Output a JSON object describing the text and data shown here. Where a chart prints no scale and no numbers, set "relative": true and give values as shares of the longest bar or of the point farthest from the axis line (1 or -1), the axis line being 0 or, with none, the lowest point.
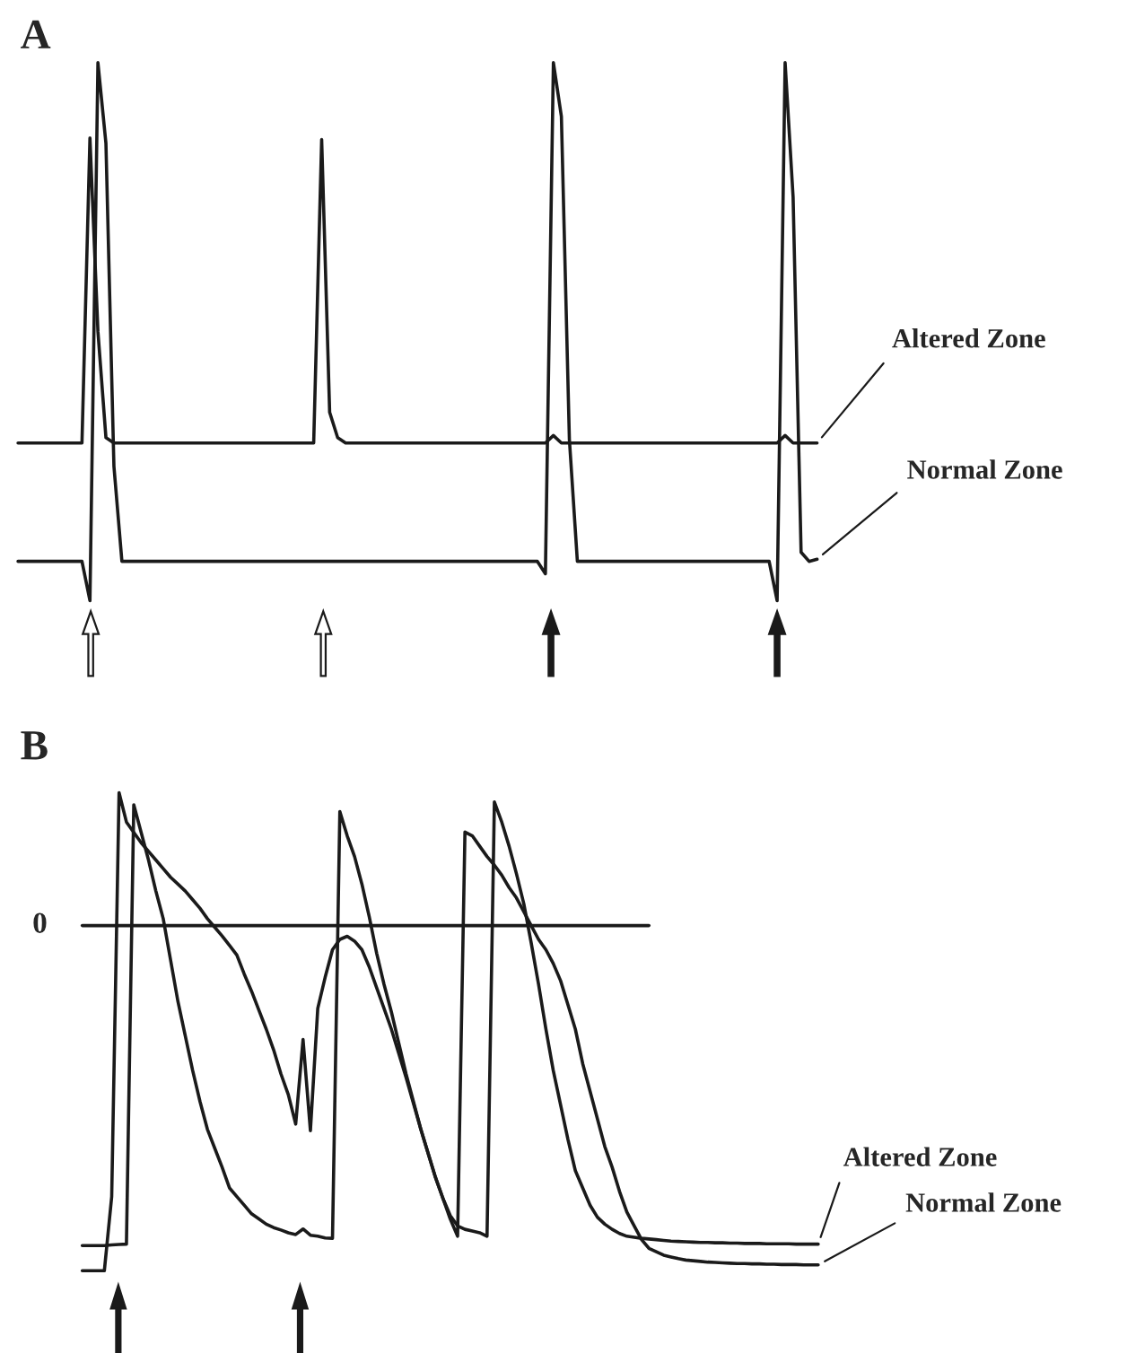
{
  "chart_data": [
    {
      "type": "line",
      "relative": true,
      "title": "A",
      "categories": [
        null,
        null,
        null,
        null,
        null,
        null,
        null,
        null,
        null,
        null,
        null,
        null,
        null,
        null,
        null,
        null,
        null,
        null,
        null,
        null,
        null,
        null,
        null,
        null,
        null,
        null,
        null,
        null,
        null,
        null,
        null,
        null,
        null,
        null,
        null,
        null,
        null,
        null,
        null,
        null,
        null,
        null,
        null,
        null,
        null,
        null,
        null,
        null,
        null,
        null,
        null,
        null,
        null,
        null,
        null,
        null,
        null,
        null,
        null,
        null,
        null,
        null,
        null,
        null,
        null,
        null,
        null,
        null,
        null,
        null,
        null,
        null,
        null,
        null,
        null,
        null,
        null,
        null,
        null,
        null,
        null,
        null,
        null,
        null,
        null,
        null,
        null,
        null,
        null,
        null,
        null,
        null,
        null,
        null,
        null,
        null,
        null,
        null,
        null,
        null,
        null
      ],
      "series": [
        {
          "name": "Altered Zone",
          "color": "#1a1a1a",
          "values": [
            0.293,
            0.293,
            0.293,
            0.293,
            0.293,
            0.293,
            0.293,
            0.293,
            0.293,
            0.86,
            0.5,
            0.303,
            0.293,
            0.293,
            0.293,
            0.293,
            0.293,
            0.293,
            0.293,
            0.293,
            0.293,
            0.293,
            0.293,
            0.293,
            0.293,
            0.293,
            0.293,
            0.293,
            0.293,
            0.293,
            0.293,
            0.293,
            0.293,
            0.293,
            0.293,
            0.293,
            0.293,
            0.293,
            0.857,
            0.35,
            0.303,
            0.293,
            0.293,
            0.293,
            0.293,
            0.293,
            0.293,
            0.293,
            0.293,
            0.293,
            0.293,
            0.293,
            0.293,
            0.293,
            0.293,
            0.293,
            0.293,
            0.293,
            0.293,
            0.293,
            0.293,
            0.293,
            0.293,
            0.293,
            0.293,
            0.293,
            0.293,
            0.307,
            0.293,
            0.293,
            0.293,
            0.293,
            0.293,
            0.293,
            0.293,
            0.293,
            0.293,
            0.293,
            0.293,
            0.293,
            0.293,
            0.293,
            0.293,
            0.293,
            0.293,
            0.293,
            0.293,
            0.293,
            0.293,
            0.293,
            0.293,
            0.293,
            0.293,
            0.293,
            0.293,
            0.293,
            0.307,
            0.293,
            0.293,
            0.293,
            0.293
          ]
        },
        {
          "name": "Normal Zone",
          "color": "#1a1a1a",
          "values": [
            0.073,
            0.073,
            0.073,
            0.073,
            0.073,
            0.073,
            0.073,
            0.073,
            0.073,
            0,
            1,
            0.85,
            0.25,
            0.073,
            0.073,
            0.073,
            0.073,
            0.073,
            0.073,
            0.073,
            0.073,
            0.073,
            0.073,
            0.073,
            0.073,
            0.073,
            0.073,
            0.073,
            0.073,
            0.073,
            0.073,
            0.073,
            0.073,
            0.073,
            0.073,
            0.073,
            0.073,
            0.073,
            0.073,
            0.073,
            0.073,
            0.073,
            0.073,
            0.073,
            0.073,
            0.073,
            0.073,
            0.073,
            0.073,
            0.073,
            0.073,
            0.073,
            0.073,
            0.073,
            0.073,
            0.073,
            0.073,
            0.073,
            0.073,
            0.073,
            0.073,
            0.073,
            0.073,
            0.073,
            0.073,
            0.073,
            0.05,
            1,
            0.9,
            0.3,
            0.073,
            0.073,
            0.073,
            0.073,
            0.073,
            0.073,
            0.073,
            0.073,
            0.073,
            0.073,
            0.073,
            0.073,
            0.073,
            0.073,
            0.073,
            0.073,
            0.073,
            0.073,
            0.073,
            0.073,
            0.073,
            0.073,
            0.073,
            0.073,
            0.073,
            0,
            1,
            0.75,
            0.09,
            0.073,
            0.077
          ]
        }
      ]
    },
    {
      "type": "line",
      "relative": true,
      "title": "B",
      "categories": [
        null,
        null,
        null,
        null,
        null,
        null,
        null,
        null,
        null,
        null,
        null,
        null,
        null,
        null,
        null,
        null,
        null,
        null,
        null,
        null,
        null,
        null,
        null,
        null,
        null,
        null,
        null,
        null,
        null,
        null,
        null,
        null,
        null,
        null,
        null,
        null,
        null,
        null,
        null,
        null,
        null,
        null,
        null,
        null,
        null,
        null,
        null,
        null,
        null,
        null,
        null,
        null,
        null,
        null,
        null,
        null,
        null,
        null,
        null,
        null,
        null,
        null,
        null,
        null,
        null,
        null,
        null,
        null,
        null,
        null,
        null,
        null,
        null,
        null,
        null,
        null,
        null,
        null,
        null,
        null,
        null,
        null,
        null,
        null,
        null,
        null,
        null,
        null,
        null,
        null,
        null,
        null,
        null,
        null,
        null,
        null,
        null,
        null,
        null,
        null,
        null
      ],
      "ref_lines": [
        {
          "axis": "y",
          "value": 0,
          "label": "0"
        }
      ],
      "series": [
        {
          "name": "Altered Zone",
          "color": "#1a1a1a",
          "values": [
            -1,
            -1,
            -1,
            -1,
            -0.785,
            0.385,
            0.3,
            0.27,
            0.24,
            0.215,
            0.19,
            0.165,
            0.14,
            0.12,
            0.1,
            0.075,
            0.05,
            0.02,
            -0.005,
            -0.03,
            -0.057,
            -0.085,
            -0.14,
            -0.19,
            -0.245,
            -0.3,
            -0.36,
            -0.43,
            -0.49,
            -0.575,
            -0.33,
            -0.594,
            -0.24,
            -0.15,
            -0.07,
            -0.04,
            -0.031,
            -0.045,
            -0.07,
            -0.12,
            -0.18,
            -0.24,
            -0.3,
            -0.37,
            -0.44,
            -0.515,
            -0.59,
            -0.66,
            -0.73,
            -0.79,
            -0.84,
            -0.87,
            -0.88,
            -0.885,
            -0.89,
            -0.9,
            0.358,
            0.3,
            0.23,
            0.15,
            0.063,
            -0.05,
            -0.17,
            -0.3,
            -0.42,
            -0.52,
            -0.62,
            -0.71,
            -0.76,
            -0.81,
            -0.845,
            -0.865,
            -0.88,
            -0.892,
            -0.9,
            -0.903,
            -0.906,
            -0.908,
            -0.91,
            -0.912,
            -0.914,
            -0.915,
            -0.916,
            -0.917,
            -0.918,
            -0.918,
            -0.919,
            -0.919,
            -0.92,
            -0.92,
            -0.921,
            -0.921,
            -0.921,
            -0.922,
            -0.922,
            -0.922,
            -0.922,
            -0.923,
            -0.923,
            -0.923,
            -0.923
          ]
        },
        {
          "name": "Normal Zone",
          "color": "#1a1a1a",
          "values": [
            -0.927,
            -0.927,
            -0.927,
            -0.927,
            -0.925,
            -0.924,
            -0.923,
            0.35,
            0.27,
            0.19,
            0.1,
            0.02,
            -0.1,
            -0.22,
            -0.32,
            -0.42,
            -0.51,
            -0.59,
            -0.645,
            -0.7,
            -0.76,
            -0.785,
            -0.81,
            -0.835,
            -0.85,
            -0.865,
            -0.875,
            -0.882,
            -0.89,
            -0.895,
            -0.879,
            -0.897,
            -0.9,
            -0.905,
            -0.906,
            0.33,
            0.26,
            0.2,
            0.12,
            0.025,
            -0.08,
            -0.17,
            -0.25,
            -0.34,
            -0.43,
            -0.51,
            -0.59,
            -0.66,
            -0.73,
            -0.79,
            -0.85,
            -0.9,
            0.271,
            0.26,
            0.23,
            0.2,
            0.175,
            0.146,
            0.11,
            0.08,
            0.04,
            0,
            -0.04,
            -0.07,
            -0.11,
            -0.16,
            -0.23,
            -0.3,
            -0.4,
            -0.48,
            -0.56,
            -0.64,
            -0.7,
            -0.77,
            -0.83,
            -0.87,
            -0.91,
            -0.935,
            -0.945,
            -0.955,
            -0.96,
            -0.965,
            -0.969,
            -0.971,
            -0.973,
            -0.975,
            -0.976,
            -0.977,
            -0.978,
            -0.979,
            -0.979,
            -0.98,
            -0.98,
            -0.981,
            -0.981,
            -0.982,
            -0.982,
            -0.982,
            -0.983,
            -0.983,
            -0.983
          ]
        }
      ]
    }
  ]
}
